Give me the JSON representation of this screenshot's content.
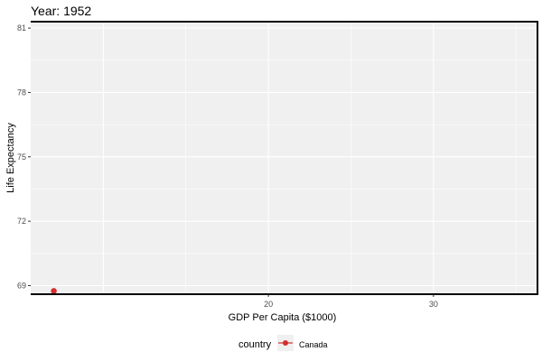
{
  "chart_data": {
    "type": "scatter",
    "title": "Year: 1952",
    "xlabel": "GDP Per Capita ($1000)",
    "ylabel": "Life Expectancy",
    "xlim": [
      5.6,
      36.3
    ],
    "ylim": [
      68.6,
      81.3
    ],
    "x_ticks": [
      20,
      30
    ],
    "y_ticks": [
      69,
      72,
      75,
      78,
      81
    ],
    "grid": true,
    "legend": {
      "title": "country",
      "position": "bottom"
    },
    "series": [
      {
        "name": "Canada",
        "color": "#d32f2f",
        "points": [
          {
            "x": 7.0,
            "y": 68.75
          }
        ]
      }
    ]
  }
}
